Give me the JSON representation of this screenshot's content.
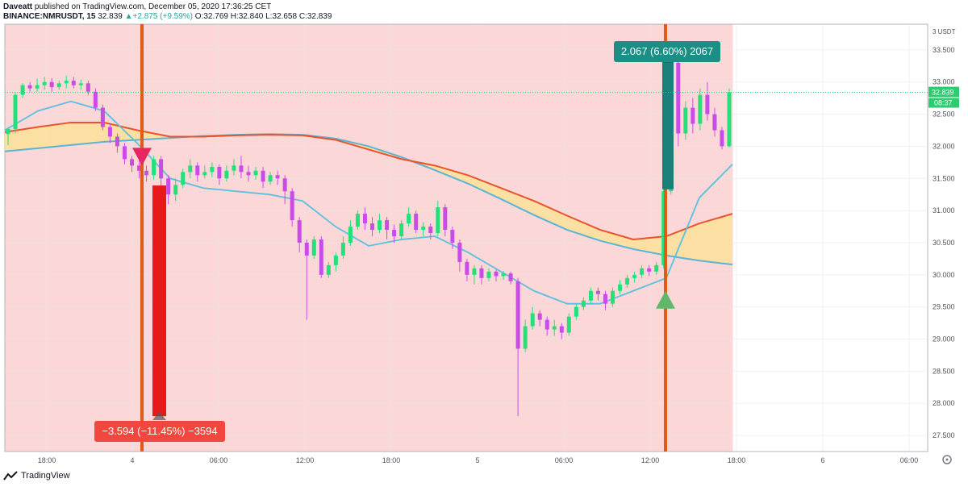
{
  "header": {
    "author": "Daveatt",
    "published_text": "published on TradingView.com, December 05, 2020 17:36:25 CET",
    "symbol": "BINANCE:NMRUSDT, 15",
    "last": "32.839",
    "change": "+2.875 (+9.59%)",
    "change_arrow": "▲",
    "open": "O:32.769",
    "high": "H:32.840",
    "low": "L:32.658",
    "close": "C:32.839"
  },
  "footer": {
    "brand": "TradingView"
  },
  "colors": {
    "bg_red": "#fbd7d7",
    "cloud": "#fbe29a",
    "ema_red": "#e8532b",
    "ema_blue": "#5ab4d6",
    "ema_fast": "#5bc0de",
    "bull": "#22e07a",
    "bear": "#c94ce8",
    "vline": "#e35a14",
    "short_bar": "#e8191b",
    "long_bar": "#1b7f7a",
    "label_red": "#f2473e",
    "label_teal": "#1b8f86",
    "price_tag": "#2ecc71"
  },
  "chart_data": {
    "type": "candlestick",
    "title": "",
    "ylabel": "USDT",
    "y_unit_label": "3 USDT",
    "ylim": [
      27.25,
      33.9
    ],
    "y_ticks": [
      "33.500",
      "33.000",
      "32.500",
      "32.000",
      "31.500",
      "31.000",
      "30.500",
      "30.000",
      "29.500",
      "29.000",
      "28.500",
      "28.000",
      "27.500"
    ],
    "x_ticks": [
      "18:00",
      "4",
      "06:00",
      "12:00",
      "18:00",
      "5",
      "06:00",
      "12:00",
      "18:00",
      "6",
      "06:00"
    ],
    "last_price": "32.839",
    "countdown": "08:37",
    "annotations": [
      {
        "name": "short-trade",
        "text": "−3.594 (−11.45%) −3594",
        "entry": 31.39,
        "exit": 27.8
      },
      {
        "name": "long-trade",
        "text": "2.067 (6.60%) 2067",
        "entry": 31.33,
        "exit": 33.4
      }
    ],
    "signals": [
      {
        "type": "sell",
        "price": 31.85
      },
      {
        "type": "buy",
        "price": 29.6
      }
    ],
    "series": [
      {
        "name": "",
        "values_desc": "EMA slow red",
        "values": [
          32.22,
          32.3,
          32.37,
          32.37,
          32.25,
          32.15,
          32.15,
          32.17,
          32.18,
          32.17,
          32.1,
          31.95,
          31.8,
          31.7,
          31.55,
          31.35,
          31.15,
          30.92,
          30.7,
          30.55,
          30.6,
          30.8,
          30.95
        ]
      },
      {
        "name": "",
        "values_desc": "EMA slow blue",
        "values": [
          31.92,
          31.97,
          32.02,
          32.07,
          32.1,
          32.13,
          32.16,
          32.18,
          32.19,
          32.18,
          32.12,
          32.0,
          31.83,
          31.63,
          31.42,
          31.18,
          30.93,
          30.7,
          30.53,
          30.4,
          30.3,
          30.22,
          30.16
        ]
      },
      {
        "name": "",
        "values_desc": "EMA fast",
        "values": [
          32.25,
          32.55,
          32.7,
          32.55,
          32.05,
          31.5,
          31.35,
          31.3,
          31.25,
          31.15,
          30.75,
          30.45,
          30.55,
          30.6,
          30.35,
          30.05,
          29.75,
          29.55,
          29.55,
          29.75,
          29.95,
          31.2,
          31.72
        ]
      }
    ],
    "candles": [
      [
        32.19,
        32.27,
        32.02,
        32.29
      ],
      [
        32.27,
        32.8,
        32.2,
        32.83
      ],
      [
        32.8,
        32.95,
        32.75,
        32.98
      ],
      [
        32.95,
        32.9,
        32.85,
        33.0
      ],
      [
        32.9,
        32.95,
        32.85,
        33.05
      ],
      [
        32.95,
        33.0,
        32.88,
        33.08
      ],
      [
        33.0,
        32.92,
        32.85,
        33.06
      ],
      [
        32.92,
        32.98,
        32.88,
        33.02
      ],
      [
        32.98,
        33.02,
        32.9,
        33.1
      ],
      [
        33.02,
        32.95,
        32.9,
        33.08
      ],
      [
        32.95,
        32.98,
        32.88,
        33.04
      ],
      [
        32.98,
        32.85,
        32.8,
        33.02
      ],
      [
        32.85,
        32.6,
        32.55,
        32.9
      ],
      [
        32.6,
        32.3,
        32.25,
        32.65
      ],
      [
        32.3,
        32.15,
        32.05,
        32.35
      ],
      [
        32.15,
        32.0,
        31.9,
        32.2
      ],
      [
        32.0,
        31.8,
        31.72,
        32.05
      ],
      [
        31.8,
        31.7,
        31.6,
        31.85
      ],
      [
        31.7,
        31.62,
        31.5,
        31.78
      ],
      [
        31.62,
        31.55,
        31.45,
        31.7
      ],
      [
        31.55,
        31.8,
        31.48,
        31.85
      ],
      [
        31.8,
        31.5,
        31.2,
        31.85
      ],
      [
        31.5,
        31.25,
        31.1,
        31.55
      ],
      [
        31.25,
        31.4,
        31.15,
        31.5
      ],
      [
        31.4,
        31.6,
        31.35,
        31.65
      ],
      [
        31.6,
        31.7,
        31.5,
        31.8
      ],
      [
        31.7,
        31.55,
        31.45,
        31.75
      ],
      [
        31.55,
        31.6,
        31.5,
        31.7
      ],
      [
        31.6,
        31.68,
        31.52,
        31.75
      ],
      [
        31.68,
        31.5,
        31.4,
        31.72
      ],
      [
        31.5,
        31.62,
        31.45,
        31.7
      ],
      [
        31.62,
        31.7,
        31.55,
        31.8
      ],
      [
        31.7,
        31.6,
        31.5,
        31.85
      ],
      [
        31.6,
        31.55,
        31.45,
        31.7
      ],
      [
        31.55,
        31.62,
        31.48,
        31.68
      ],
      [
        31.62,
        31.45,
        31.35,
        31.68
      ],
      [
        31.45,
        31.55,
        31.4,
        31.6
      ],
      [
        31.55,
        31.5,
        31.4,
        31.62
      ],
      [
        31.5,
        31.3,
        31.1,
        31.55
      ],
      [
        31.3,
        30.85,
        30.75,
        31.35
      ],
      [
        30.85,
        30.5,
        30.35,
        30.9
      ],
      [
        30.5,
        30.3,
        29.3,
        30.55
      ],
      [
        30.3,
        30.55,
        30.25,
        30.6
      ],
      [
        30.55,
        30.0,
        29.95,
        30.6
      ],
      [
        30.0,
        30.15,
        29.95,
        30.2
      ],
      [
        30.15,
        30.3,
        30.05,
        30.35
      ],
      [
        30.3,
        30.5,
        30.25,
        30.6
      ],
      [
        30.5,
        30.75,
        30.45,
        30.85
      ],
      [
        30.75,
        30.95,
        30.7,
        31.0
      ],
      [
        30.95,
        30.8,
        30.7,
        31.05
      ],
      [
        30.8,
        30.7,
        30.6,
        30.9
      ],
      [
        30.7,
        30.85,
        30.65,
        30.95
      ],
      [
        30.85,
        30.7,
        30.55,
        30.9
      ],
      [
        30.7,
        30.6,
        30.5,
        30.78
      ],
      [
        30.6,
        30.8,
        30.55,
        30.85
      ],
      [
        30.8,
        30.95,
        30.75,
        31.05
      ],
      [
        30.95,
        30.7,
        30.65,
        31.0
      ],
      [
        30.7,
        30.75,
        30.6,
        30.82
      ],
      [
        30.75,
        30.65,
        30.55,
        30.8
      ],
      [
        30.65,
        31.05,
        30.6,
        31.15
      ],
      [
        31.05,
        30.7,
        30.6,
        31.1
      ],
      [
        30.7,
        30.5,
        30.4,
        30.75
      ],
      [
        30.5,
        30.2,
        30.05,
        30.55
      ],
      [
        30.2,
        30.0,
        29.9,
        30.25
      ],
      [
        30.0,
        30.1,
        29.85,
        30.15
      ],
      [
        30.1,
        29.95,
        29.85,
        30.15
      ],
      [
        29.95,
        30.05,
        29.9,
        30.1
      ],
      [
        30.05,
        29.98,
        29.9,
        30.08
      ],
      [
        29.98,
        30.02,
        29.92,
        30.06
      ],
      [
        30.02,
        29.9,
        29.85,
        30.05
      ],
      [
        29.9,
        28.85,
        27.8,
        29.95
      ],
      [
        28.85,
        29.2,
        28.8,
        29.3
      ],
      [
        29.2,
        29.4,
        29.15,
        29.5
      ],
      [
        29.4,
        29.3,
        29.2,
        29.45
      ],
      [
        29.3,
        29.15,
        29.05,
        29.35
      ],
      [
        29.15,
        29.2,
        29.05,
        29.3
      ],
      [
        29.2,
        29.1,
        29.0,
        29.25
      ],
      [
        29.1,
        29.35,
        29.05,
        29.4
      ],
      [
        29.35,
        29.5,
        29.3,
        29.55
      ],
      [
        29.5,
        29.6,
        29.45,
        29.65
      ],
      [
        29.6,
        29.75,
        29.55,
        29.8
      ],
      [
        29.75,
        29.7,
        29.6,
        29.8
      ],
      [
        29.7,
        29.55,
        29.45,
        29.75
      ],
      [
        29.55,
        29.75,
        29.5,
        29.8
      ],
      [
        29.75,
        29.85,
        29.7,
        29.92
      ],
      [
        29.85,
        29.95,
        29.8,
        30.0
      ],
      [
        29.95,
        30.0,
        29.88,
        30.05
      ],
      [
        30.0,
        30.1,
        29.95,
        30.15
      ],
      [
        30.1,
        30.05,
        29.98,
        30.15
      ],
      [
        30.05,
        30.15,
        30.0,
        30.2
      ],
      [
        30.15,
        31.3,
        30.1,
        31.35
      ],
      [
        31.3,
        33.3,
        31.25,
        33.35
      ],
      [
        33.3,
        32.2,
        32.0,
        33.45
      ],
      [
        32.2,
        32.6,
        32.1,
        32.7
      ],
      [
        32.6,
        32.35,
        32.2,
        32.75
      ],
      [
        32.35,
        32.8,
        32.25,
        32.9
      ],
      [
        32.8,
        32.5,
        32.4,
        33.0
      ],
      [
        32.5,
        32.25,
        32.15,
        32.6
      ],
      [
        32.25,
        32.0,
        31.95,
        32.3
      ],
      [
        32.0,
        32.84,
        31.98,
        32.9
      ]
    ]
  }
}
